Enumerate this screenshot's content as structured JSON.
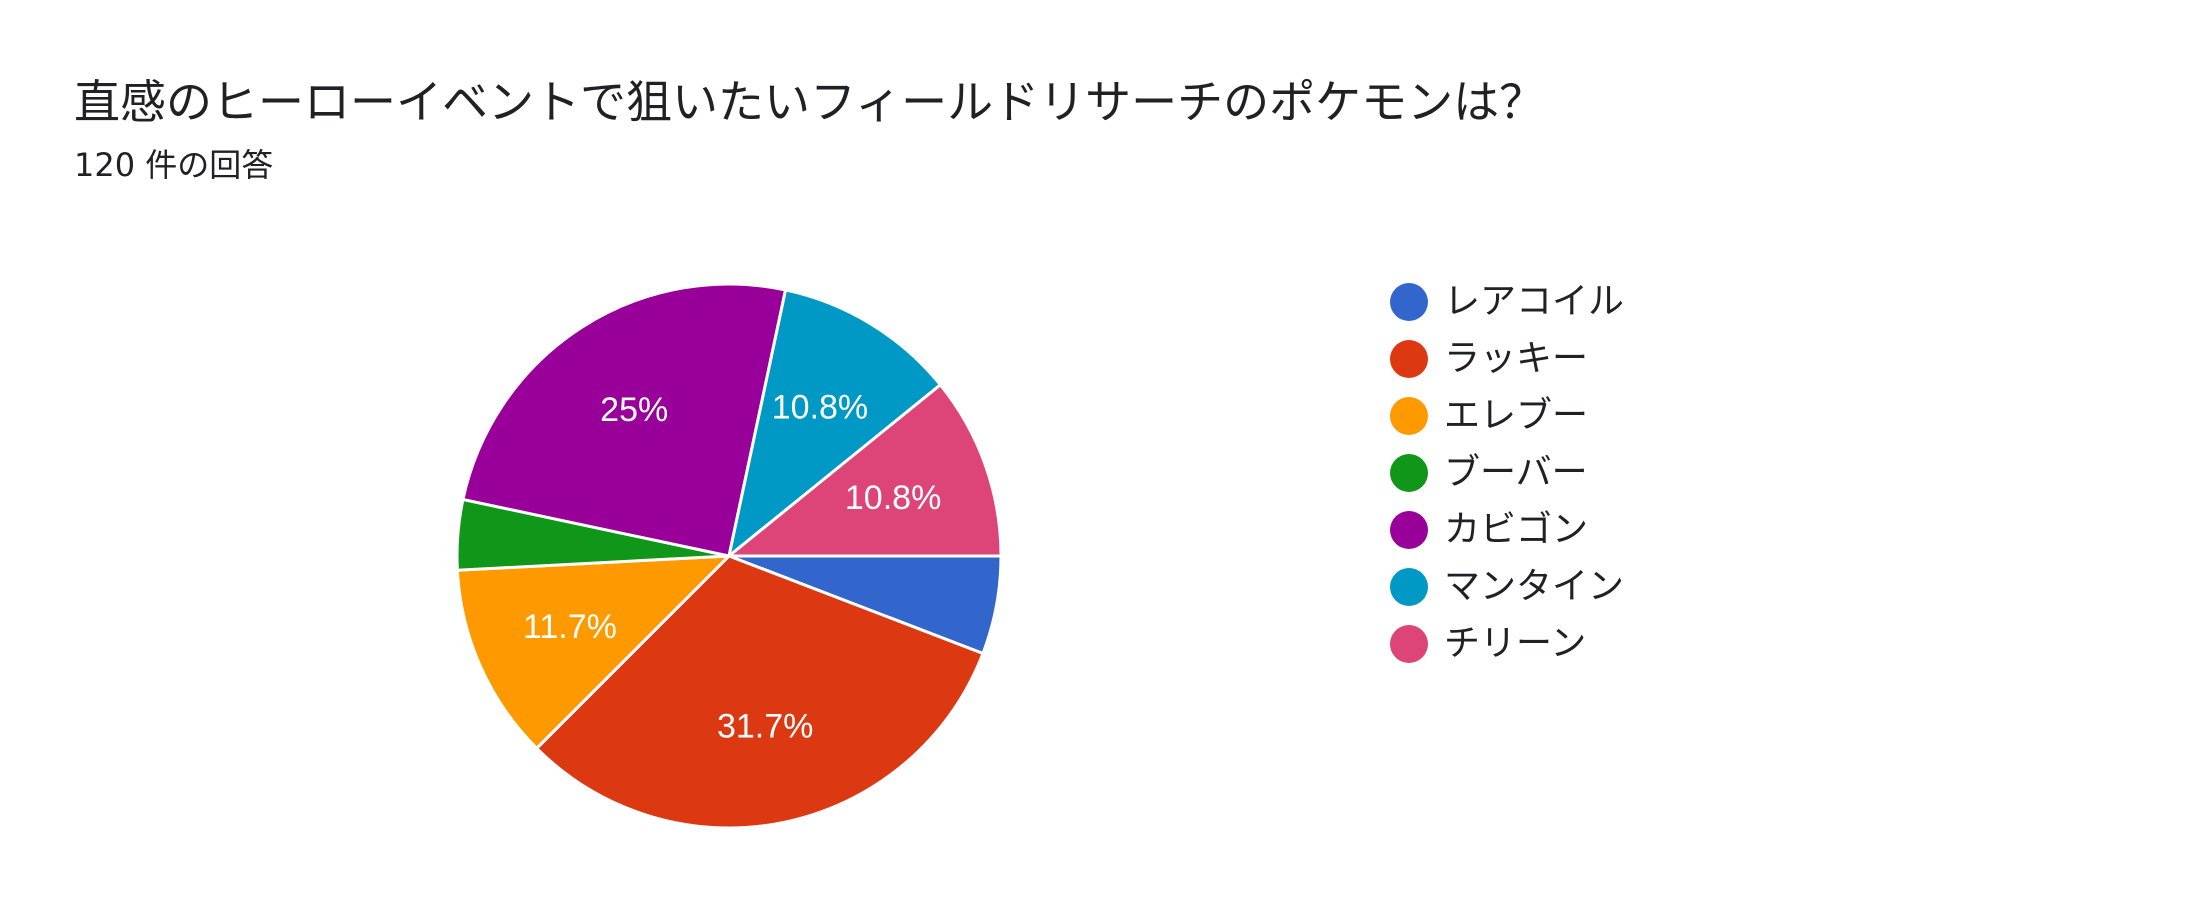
{
  "title": "直感のヒーローイベントで狙いたいフィールドリサーチのポケモンは？",
  "subtitle": "120 件の回答",
  "chart_data": {
    "type": "pie",
    "total_responses": 120,
    "categories": [
      "レアコイル",
      "ラッキー",
      "エレブー",
      "ブーバー",
      "カビゴン",
      "マンタイン",
      "チリーン"
    ],
    "values": [
      7,
      38,
      14,
      5,
      30,
      13,
      13
    ],
    "percent_labels": [
      "",
      "31.7%",
      "11.7%",
      "",
      "25%",
      "10.8%",
      "10.8%"
    ],
    "colors": [
      "#3366cc",
      "#dc3912",
      "#ff9900",
      "#109618",
      "#990099",
      "#0099c6",
      "#dd4477"
    ],
    "legend_position": "right"
  }
}
